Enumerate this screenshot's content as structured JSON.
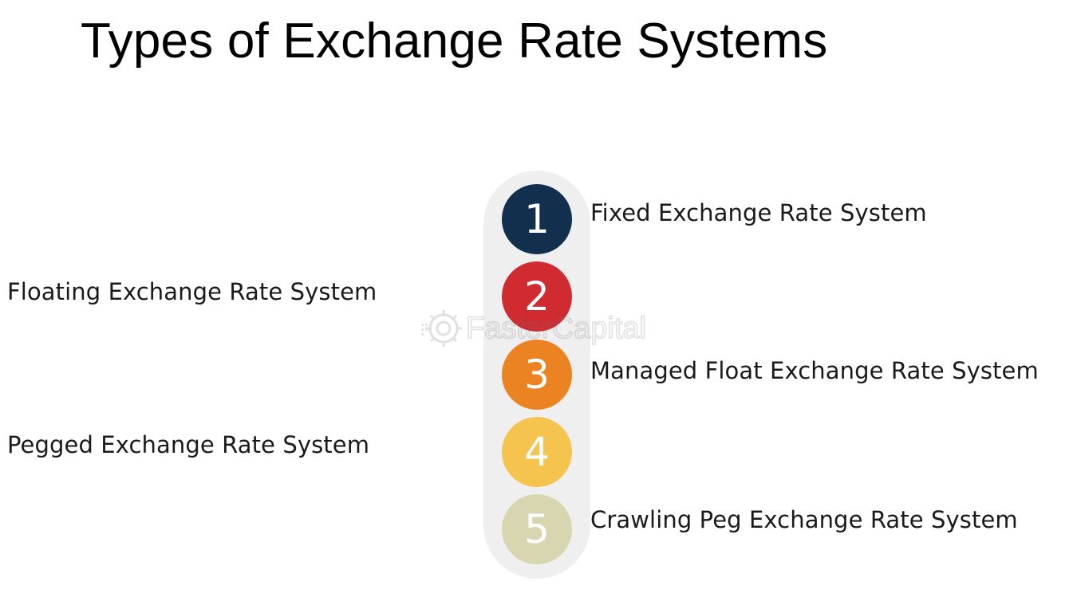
{
  "title": "Types of Exchange Rate Systems",
  "items": [
    {
      "number": "1",
      "label": "Fixed Exchange Rate System",
      "side": "right",
      "color": "#12304d"
    },
    {
      "number": "2",
      "label": "Floating Exchange Rate System",
      "side": "left",
      "color": "#cf2b30"
    },
    {
      "number": "3",
      "label": "Managed Float Exchange Rate System",
      "side": "right",
      "color": "#ec8322"
    },
    {
      "number": "4",
      "label": "Pegged Exchange Rate System",
      "side": "left",
      "color": "#f5c44e"
    },
    {
      "number": "5",
      "label": "Crawling Peg Exchange Rate System",
      "side": "right",
      "color": "#d8d6b0"
    }
  ],
  "watermark": {
    "text": "FasterCapital",
    "icon": "gear-logo-icon"
  },
  "colors": {
    "pill": "#efefef",
    "text": "#1a1a1a",
    "title": "#000000"
  }
}
